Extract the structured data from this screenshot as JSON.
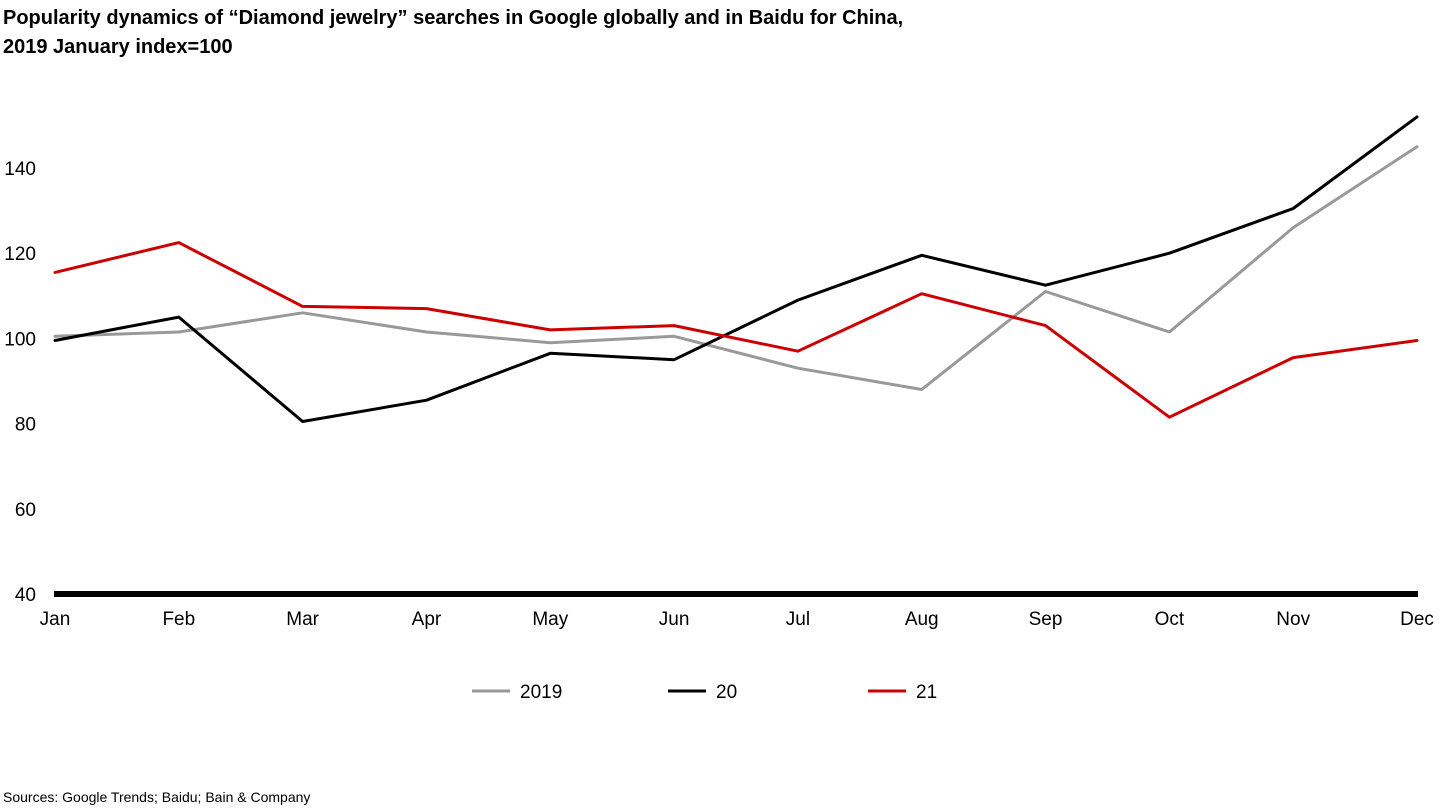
{
  "title_line1": "Popularity dynamics of “Diamond jewelry” searches in Google globally and in Baidu for China,",
  "title_line2": "2019 January index=100",
  "source": "Sources: Google Trends; Baidu; Bain & Company",
  "chart_data": {
    "type": "line",
    "categories": [
      "Jan",
      "Feb",
      "Mar",
      "Apr",
      "May",
      "Jun",
      "Jul",
      "Aug",
      "Sep",
      "Oct",
      "Nov",
      "Dec"
    ],
    "ylim": [
      40,
      150
    ],
    "yticks": [
      40,
      60,
      80,
      100,
      120,
      140
    ],
    "grid": false,
    "legend_position": "bottom",
    "series": [
      {
        "name": "2019",
        "color": "#999999",
        "values": [
          100.5,
          101.5,
          106,
          101.5,
          99,
          100.5,
          93,
          88,
          111,
          101.5,
          126,
          145
        ]
      },
      {
        "name": "20",
        "color": "#000000",
        "values": [
          99.5,
          105,
          80.5,
          85.5,
          96.5,
          95,
          109,
          119.5,
          112.5,
          120,
          130.5,
          152
        ]
      },
      {
        "name": "21",
        "color": "#cc0000",
        "values": [
          115.5,
          122.5,
          107.5,
          107,
          102,
          103,
          97,
          110.5,
          103,
          81.5,
          95.5,
          99.5
        ]
      }
    ]
  }
}
